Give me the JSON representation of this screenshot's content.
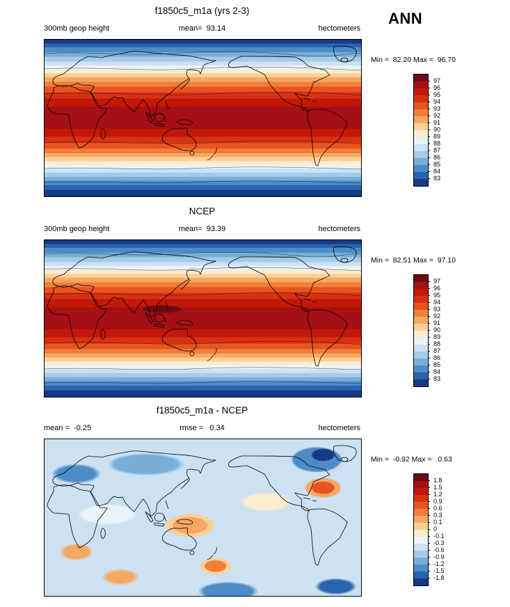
{
  "season_label": "ANN",
  "panels": [
    {
      "title": "f1850c5_m1a (yrs 2-3)",
      "left_label": "300mb geop height",
      "center_label": "mean=  93.14",
      "right_label": "hectometers",
      "minmax_label": "Min =  82.20 Max =  96.70",
      "colorbar_ticks": [
        "97",
        "96",
        "95",
        "94",
        "93",
        "92",
        "91",
        "90",
        "89",
        "88",
        "87",
        "86",
        "85",
        "84",
        "83"
      ]
    },
    {
      "title": "NCEP",
      "left_label": "300mb geop height",
      "center_label": "mean=  93.39",
      "right_label": "hectometers",
      "minmax_label": "Min =  82.51 Max =  97.10",
      "colorbar_ticks": [
        "97",
        "96",
        "95",
        "94",
        "93",
        "92",
        "91",
        "90",
        "89",
        "88",
        "87",
        "86",
        "85",
        "84",
        "83"
      ]
    },
    {
      "title": "f1850c5_m1a - NCEP",
      "left_label": "mean =  -0.25",
      "center_label": "rmse =   0.34",
      "right_label": "hectometers",
      "minmax_label": "Min =  -0.92 Max =   0.63",
      "colorbar_ticks": [
        "1.8",
        "1.5",
        "1.2",
        "0.9",
        "0.6",
        "0.3",
        "0.1",
        "0",
        "-0.1",
        "-0.3",
        "-0.6",
        "-0.9",
        "-1.2",
        "-1.5",
        "-1.8"
      ]
    }
  ],
  "palette": [
    "#6e0a12",
    "#a50f15",
    "#c21807",
    "#d73114",
    "#e8541f",
    "#f07f3c",
    "#f6a862",
    "#fbcf96",
    "#fdeccd",
    "#e9f3fa",
    "#cce2f3",
    "#a6cbe8",
    "#79aed9",
    "#4d8cc7",
    "#2a63ae",
    "#173a85"
  ],
  "chart_data": [
    {
      "type": "heatmap",
      "panel": "top",
      "title": "f1850c5_m1a (yrs 2-3)",
      "variable": "300mb geop height",
      "season": "ANN",
      "units": "hectometers",
      "mean": 93.14,
      "min": 82.2,
      "max": 96.7,
      "levels": [
        83,
        84,
        85,
        86,
        87,
        88,
        89,
        90,
        91,
        92,
        93,
        94,
        95,
        96,
        97
      ],
      "legend_position": "right",
      "pattern": "zonal bands: maxima (dark red, ~96) across tropics and subtropics, minima (dark blue, ~82-83) at both poles"
    },
    {
      "type": "heatmap",
      "panel": "middle",
      "title": "NCEP",
      "variable": "300mb geop height",
      "season": "ANN",
      "units": "hectometers",
      "mean": 93.39,
      "min": 82.51,
      "max": 97.1,
      "levels": [
        83,
        84,
        85,
        86,
        87,
        88,
        89,
        90,
        91,
        92,
        93,
        94,
        95,
        96,
        97
      ],
      "legend_position": "right",
      "pattern": "same zonal structure; small region exceeding 97 (darkest red) over the tropical west Pacific"
    },
    {
      "type": "heatmap",
      "panel": "bottom",
      "title": "f1850c5_m1a - NCEP",
      "variable": "300mb geop height difference",
      "units": "hectometers",
      "mean": -0.25,
      "rmse": 0.34,
      "min": -0.92,
      "max": 0.63,
      "levels": [
        -1.8,
        -1.5,
        -1.2,
        -0.9,
        -0.6,
        -0.3,
        -0.1,
        0,
        0.1,
        0.3,
        0.6,
        0.9,
        1.2,
        1.5,
        1.8
      ],
      "legend_position": "right",
      "pattern": "mostly weak negative differences (light blue) with scattered positive (orange) patches over the N Atlantic, tropical Pacific, New Zealand and S Indian Ocean; stronger negatives over the N Pacific, Europe and NE Canada"
    }
  ]
}
